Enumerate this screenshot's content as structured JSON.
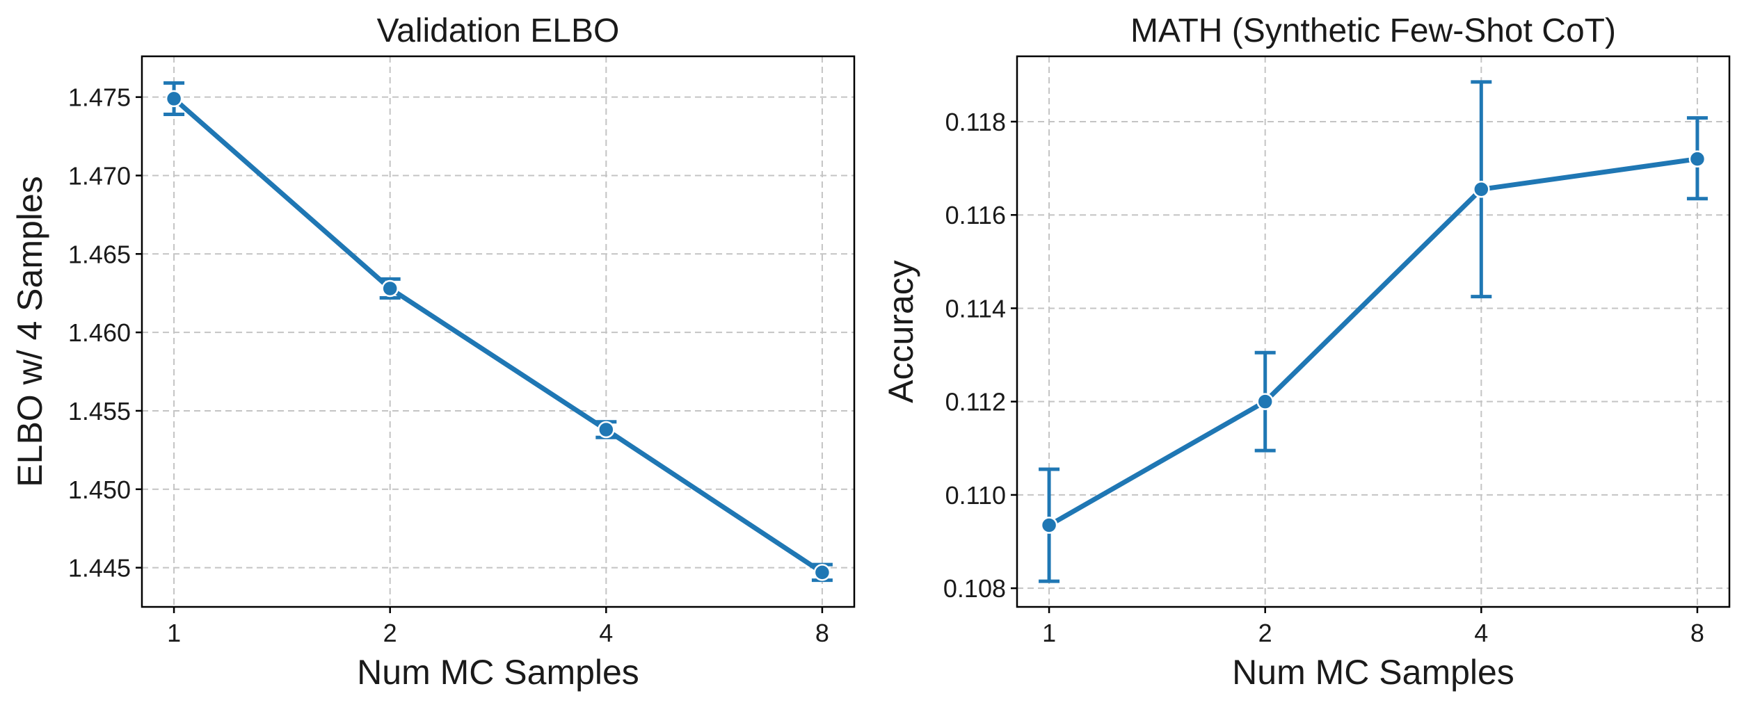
{
  "chart_data": [
    {
      "type": "line",
      "title": "Validation ELBO",
      "xlabel": "Num MC Samples",
      "ylabel": "ELBO w/ 4 Samples",
      "x_scale": "categorical",
      "categories": [
        "1",
        "2",
        "4",
        "8"
      ],
      "ylim": [
        1.4425,
        1.4776
      ],
      "yticks": [
        1.445,
        1.45,
        1.455,
        1.46,
        1.465,
        1.47,
        1.475
      ],
      "ytick_labels": [
        "1.445",
        "1.450",
        "1.455",
        "1.460",
        "1.465",
        "1.470",
        "1.475"
      ],
      "grid": true,
      "color": "#1f77b4",
      "series": [
        {
          "values": [
            1.4749,
            1.4628,
            1.4538,
            1.4447
          ],
          "err_low": [
            1.4739,
            1.4622,
            1.4533,
            1.4442
          ],
          "err_high": [
            1.4759,
            1.4634,
            1.4543,
            1.4452
          ]
        }
      ]
    },
    {
      "type": "line",
      "title": "MATH (Synthetic Few-Shot CoT)",
      "xlabel": "Num MC Samples",
      "ylabel": "Accuracy",
      "x_scale": "categorical",
      "categories": [
        "1",
        "2",
        "4",
        "8"
      ],
      "ylim": [
        0.1076,
        0.1194
      ],
      "yticks": [
        0.108,
        0.11,
        0.112,
        0.114,
        0.116,
        0.118
      ],
      "ytick_labels": [
        "0.108",
        "0.110",
        "0.112",
        "0.114",
        "0.116",
        "0.118"
      ],
      "grid": true,
      "color": "#1f77b4",
      "series": [
        {
          "values": [
            0.10935,
            0.112,
            0.11655,
            0.1172
          ],
          "err_low": [
            0.10815,
            0.11095,
            0.11425,
            0.11635
          ],
          "err_high": [
            0.11055,
            0.11305,
            0.11885,
            0.11808
          ]
        }
      ]
    }
  ]
}
